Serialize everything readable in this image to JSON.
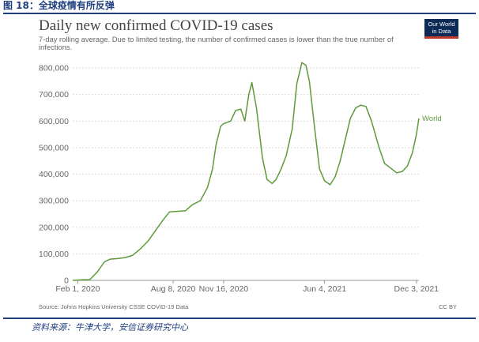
{
  "header": {
    "figure_title": "图 18：全球疫情有所反弹"
  },
  "footer": {
    "source_note": "资料来源：牛津大学，安信证券研究中心"
  },
  "logo": {
    "line1": "Our World",
    "line2": "in Data"
  },
  "colors": {
    "series": "#5d9b3a",
    "axis": "#999999",
    "grid": "#dddddd",
    "header": "#1f3f7f"
  },
  "chart_data": {
    "type": "line",
    "title": "Daily new confirmed COVID-19 cases",
    "subtitle": "7-day rolling average. Due to limited testing, the number of confirmed cases is lower than the true number of infections.",
    "source": "Source: Johns Hopkins University CSSE COVID-19 Data",
    "license": "CC BY",
    "xlabel": "",
    "ylabel": "",
    "ylim": [
      0,
      800000
    ],
    "xlim": [
      "2020-01-22",
      "2021-12-08"
    ],
    "grid": true,
    "y_ticks": [
      0,
      100000,
      200000,
      300000,
      400000,
      500000,
      600000,
      700000,
      800000
    ],
    "y_tick_labels": [
      "0",
      "100,000",
      "200,000",
      "300,000",
      "400,000",
      "500,000",
      "600,000",
      "700,000",
      "800,000"
    ],
    "x_ticks": [
      "2020-02-01",
      "2020-08-08",
      "2020-11-16",
      "2021-06-04",
      "2021-12-03"
    ],
    "x_tick_labels": [
      "Feb 1, 2020",
      "Aug 8, 2020",
      "Nov 16, 2020",
      "Jun 4, 2021",
      "Dec 3, 2021"
    ],
    "series": [
      {
        "name": "World",
        "x": [
          "2020-01-22",
          "2020-02-10",
          "2020-02-25",
          "2020-03-10",
          "2020-03-25",
          "2020-04-05",
          "2020-04-20",
          "2020-05-05",
          "2020-05-20",
          "2020-06-05",
          "2020-06-20",
          "2020-07-05",
          "2020-07-20",
          "2020-08-01",
          "2020-08-15",
          "2020-09-01",
          "2020-09-15",
          "2020-10-01",
          "2020-10-15",
          "2020-10-25",
          "2020-11-01",
          "2020-11-10",
          "2020-11-16",
          "2020-11-30",
          "2020-12-10",
          "2020-12-20",
          "2020-12-28",
          "2021-01-05",
          "2021-01-11",
          "2021-01-20",
          "2021-02-01",
          "2021-02-10",
          "2021-02-20",
          "2021-02-28",
          "2021-03-10",
          "2021-03-20",
          "2021-04-01",
          "2021-04-10",
          "2021-04-20",
          "2021-04-28",
          "2021-05-05",
          "2021-05-15",
          "2021-05-25",
          "2021-06-04",
          "2021-06-15",
          "2021-06-25",
          "2021-07-05",
          "2021-07-15",
          "2021-07-25",
          "2021-08-05",
          "2021-08-15",
          "2021-08-25",
          "2021-09-05",
          "2021-09-20",
          "2021-10-01",
          "2021-10-15",
          "2021-10-25",
          "2021-11-05",
          "2021-11-15",
          "2021-11-25",
          "2021-12-03",
          "2021-12-08"
        ],
        "values": [
          200,
          2500,
          3000,
          30000,
          70000,
          80000,
          82000,
          86000,
          95000,
          120000,
          150000,
          190000,
          230000,
          258000,
          260000,
          262000,
          285000,
          300000,
          350000,
          420000,
          510000,
          580000,
          590000,
          600000,
          640000,
          645000,
          600000,
          700000,
          745000,
          650000,
          460000,
          380000,
          365000,
          380000,
          420000,
          470000,
          570000,
          740000,
          820000,
          810000,
          750000,
          580000,
          420000,
          375000,
          360000,
          390000,
          450000,
          530000,
          610000,
          650000,
          660000,
          655000,
          600000,
          500000,
          440000,
          420000,
          405000,
          410000,
          430000,
          480000,
          550000,
          610000
        ]
      }
    ]
  }
}
